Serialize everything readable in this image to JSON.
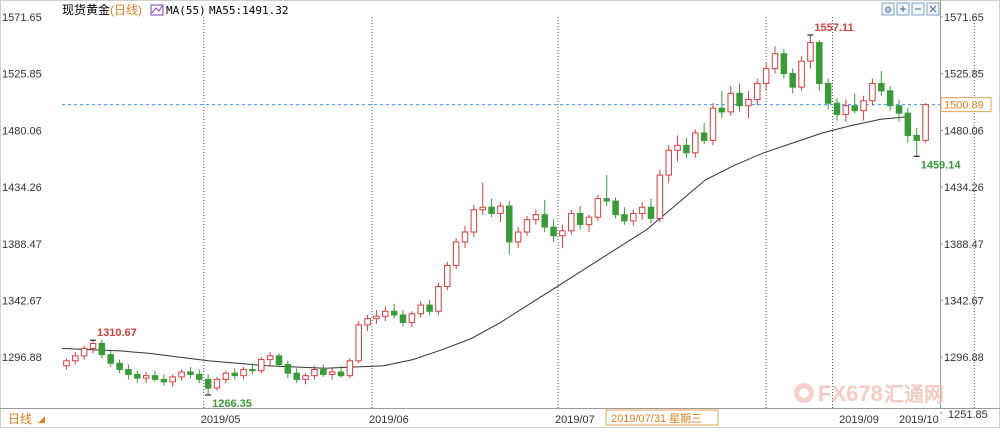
{
  "header": {
    "instrument": "现货黄金",
    "period": "(日线)",
    "ma_label": "MA(55)",
    "ma_value": "MA55:1491.32"
  },
  "toolbar": {
    "icons": [
      "settings-icon",
      "zoom-in-icon",
      "zoom-out-icon",
      "close-icon"
    ]
  },
  "footer": {
    "period_tab": "日线",
    "cursor_date": "2019/07/31 星期三"
  },
  "watermark": {
    "brand": "FX678",
    "cn": "汇通网"
  },
  "colors": {
    "up": "#d24040",
    "down": "#3a9a3a",
    "ma": "#333333",
    "grid": "#555555",
    "price_line": "#3399ff",
    "price_tag_border": "#e8a050",
    "axis_text": "#333333"
  },
  "chart_data": {
    "type": "candlestick",
    "title": "现货黄金(日线)",
    "y_ticks": [
      "1571.65",
      "1525.85",
      "1480.06",
      "1434.26",
      "1388.47",
      "1342.67",
      "1296.88",
      "1251.85"
    ],
    "ylim": [
      1251.85,
      1571.65
    ],
    "x_labels": [
      "2019/05",
      "2019/06",
      "2019/07",
      "2019/09",
      "2019/10"
    ],
    "current_price": "1500.89",
    "annotations": {
      "high_1": "1310.67",
      "low_1": "1266.35",
      "high_2": "1557.11",
      "low_2": "1459.14"
    },
    "ma_period": 55,
    "ma_current": 1491.32,
    "ma_series": [
      1304,
      1303,
      1302,
      1300,
      1297,
      1294,
      1292,
      1290,
      1289,
      1288,
      1289,
      1290,
      1295,
      1303,
      1312,
      1325,
      1340,
      1355,
      1370,
      1385,
      1400,
      1420,
      1440,
      1452,
      1462,
      1470,
      1478,
      1484,
      1489,
      1491.32
    ],
    "candles": [
      [
        1290,
        1296,
        1287,
        1294
      ],
      [
        1294,
        1301,
        1291,
        1298
      ],
      [
        1298,
        1306,
        1295,
        1304
      ],
      [
        1304,
        1310.67,
        1300,
        1308
      ],
      [
        1308,
        1311,
        1296,
        1299
      ],
      [
        1299,
        1302,
        1289,
        1292
      ],
      [
        1292,
        1295,
        1284,
        1287
      ],
      [
        1287,
        1291,
        1279,
        1283
      ],
      [
        1283,
        1286,
        1276,
        1280
      ],
      [
        1280,
        1285,
        1276,
        1282
      ],
      [
        1282,
        1286,
        1277,
        1279
      ],
      [
        1279,
        1283,
        1274,
        1277
      ],
      [
        1277,
        1283,
        1273,
        1281
      ],
      [
        1281,
        1287,
        1278,
        1285
      ],
      [
        1285,
        1289,
        1280,
        1283
      ],
      [
        1283,
        1287,
        1276,
        1279
      ],
      [
        1279,
        1283,
        1266.35,
        1272
      ],
      [
        1272,
        1281,
        1270,
        1279
      ],
      [
        1279,
        1286,
        1276,
        1284
      ],
      [
        1284,
        1288,
        1279,
        1282
      ],
      [
        1282,
        1289,
        1279,
        1287
      ],
      [
        1287,
        1292,
        1283,
        1286
      ],
      [
        1286,
        1297,
        1284,
        1295
      ],
      [
        1295,
        1301,
        1290,
        1298
      ],
      [
        1298,
        1300,
        1289,
        1291
      ],
      [
        1291,
        1294,
        1280,
        1284
      ],
      [
        1284,
        1288,
        1276,
        1279
      ],
      [
        1279,
        1284,
        1275,
        1282
      ],
      [
        1282,
        1290,
        1279,
        1287
      ],
      [
        1287,
        1291,
        1281,
        1283
      ],
      [
        1283,
        1288,
        1279,
        1285
      ],
      [
        1285,
        1290,
        1280,
        1282
      ],
      [
        1282,
        1296,
        1280,
        1294
      ],
      [
        1294,
        1326,
        1292,
        1323
      ],
      [
        1323,
        1331,
        1318,
        1328
      ],
      [
        1328,
        1335,
        1324,
        1330
      ],
      [
        1330,
        1338,
        1326,
        1334
      ],
      [
        1334,
        1340,
        1328,
        1331
      ],
      [
        1331,
        1335,
        1322,
        1325
      ],
      [
        1325,
        1334,
        1321,
        1332
      ],
      [
        1332,
        1342,
        1329,
        1339
      ],
      [
        1339,
        1343,
        1331,
        1334
      ],
      [
        1334,
        1357,
        1331,
        1354
      ],
      [
        1354,
        1374,
        1351,
        1371
      ],
      [
        1371,
        1393,
        1368,
        1390
      ],
      [
        1390,
        1403,
        1385,
        1398
      ],
      [
        1398,
        1420,
        1394,
        1416
      ],
      [
        1416,
        1438,
        1412,
        1418
      ],
      [
        1418,
        1425,
        1410,
        1413
      ],
      [
        1413,
        1422,
        1406,
        1419
      ],
      [
        1419,
        1423,
        1380,
        1390
      ],
      [
        1390,
        1402,
        1385,
        1398
      ],
      [
        1398,
        1411,
        1395,
        1408
      ],
      [
        1408,
        1416,
        1404,
        1412
      ],
      [
        1412,
        1424,
        1398,
        1402
      ],
      [
        1402,
        1408,
        1390,
        1395
      ],
      [
        1395,
        1404,
        1385,
        1399
      ],
      [
        1399,
        1416,
        1396,
        1413
      ],
      [
        1413,
        1419,
        1400,
        1404
      ],
      [
        1404,
        1412,
        1398,
        1410
      ],
      [
        1410,
        1428,
        1407,
        1425
      ],
      [
        1425,
        1444,
        1419,
        1423
      ],
      [
        1423,
        1426,
        1409,
        1412
      ],
      [
        1412,
        1418,
        1404,
        1407
      ],
      [
        1407,
        1416,
        1403,
        1413
      ],
      [
        1413,
        1422,
        1408,
        1418
      ],
      [
        1418,
        1425,
        1405,
        1409
      ],
      [
        1409,
        1448,
        1406,
        1444
      ],
      [
        1444,
        1468,
        1438,
        1464
      ],
      [
        1464,
        1476,
        1455,
        1468
      ],
      [
        1468,
        1474,
        1458,
        1462
      ],
      [
        1462,
        1481,
        1458,
        1478
      ],
      [
        1478,
        1486,
        1469,
        1472
      ],
      [
        1472,
        1502,
        1468,
        1498
      ],
      [
        1498,
        1512,
        1490,
        1495
      ],
      [
        1495,
        1516,
        1492,
        1510
      ],
      [
        1510,
        1518,
        1495,
        1500
      ],
      [
        1500,
        1512,
        1490,
        1505
      ],
      [
        1505,
        1522,
        1500,
        1518
      ],
      [
        1518,
        1535,
        1512,
        1530
      ],
      [
        1530,
        1548,
        1526,
        1542
      ],
      [
        1542,
        1546,
        1522,
        1526
      ],
      [
        1526,
        1530,
        1510,
        1515
      ],
      [
        1515,
        1540,
        1512,
        1536
      ],
      [
        1536,
        1557.11,
        1530,
        1551
      ],
      [
        1551,
        1553,
        1512,
        1518
      ],
      [
        1518,
        1522,
        1497,
        1502
      ],
      [
        1502,
        1506,
        1488,
        1493
      ],
      [
        1493,
        1505,
        1487,
        1500
      ],
      [
        1500,
        1510,
        1494,
        1496
      ],
      [
        1496,
        1508,
        1488,
        1504
      ],
      [
        1504,
        1522,
        1500,
        1518
      ],
      [
        1518,
        1528,
        1508,
        1512
      ],
      [
        1512,
        1516,
        1496,
        1500
      ],
      [
        1500,
        1505,
        1487,
        1494
      ],
      [
        1494,
        1498,
        1470,
        1476
      ],
      [
        1476,
        1482,
        1459.14,
        1472
      ],
      [
        1472,
        1502,
        1470,
        1500.89
      ]
    ]
  }
}
